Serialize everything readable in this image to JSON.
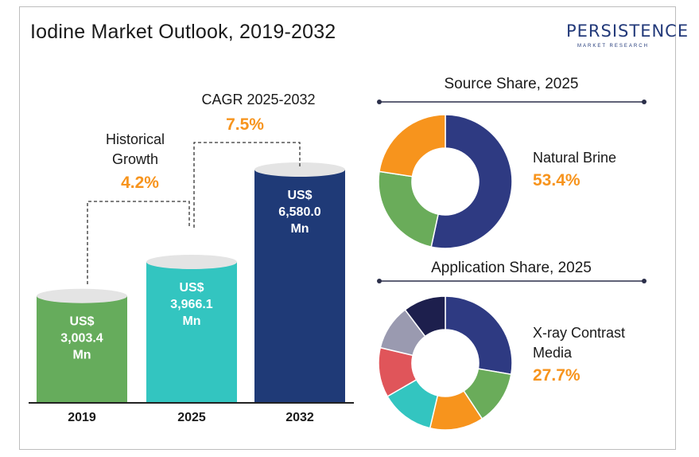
{
  "title": "Iodine Market Outlook, 2019-2032",
  "logo": {
    "name": "PERSISTENCE",
    "tagline": "MARKET RESEARCH"
  },
  "chart_data": [
    {
      "type": "bar",
      "categories": [
        "2019",
        "2025",
        "2032"
      ],
      "values": [
        3003.4,
        3966.1,
        6580.0
      ],
      "value_labels": [
        [
          "US$",
          "3,003.4",
          "Mn"
        ],
        [
          "US$",
          "3,966.1",
          "Mn"
        ],
        [
          "US$",
          "6,580.0",
          "Mn"
        ]
      ],
      "colors": [
        "#66ac5c",
        "#33c5c0",
        "#1f3a77"
      ],
      "annotations": {
        "historical": {
          "label_lines": [
            "Historical",
            "Growth"
          ],
          "value": "4.2%"
        },
        "forecast": {
          "label": "CAGR 2025-2032",
          "value": "7.5%"
        }
      }
    },
    {
      "type": "pie",
      "title": "Source Share, 2025",
      "slices": [
        {
          "value": 53.4,
          "color": "#2e3a82"
        },
        {
          "value": 24.0,
          "color": "#6aac5a"
        },
        {
          "value": 22.6,
          "color": "#f7941d"
        }
      ],
      "highlight": {
        "label": "Natural Brine",
        "value": "53.4%"
      }
    },
    {
      "type": "pie",
      "title": "Application Share, 2025",
      "slices": [
        {
          "value": 27.7,
          "color": "#2e3a82"
        },
        {
          "value": 13.0,
          "color": "#6aac5a"
        },
        {
          "value": 13.0,
          "color": "#f7941d"
        },
        {
          "value": 13.0,
          "color": "#33c5c0"
        },
        {
          "value": 12.0,
          "color": "#e0555a"
        },
        {
          "value": 11.0,
          "color": "#9a9ab0"
        },
        {
          "value": 10.3,
          "color": "#1d1f4d"
        }
      ],
      "highlight": {
        "label_lines": [
          "X-ray Contrast",
          "Media"
        ],
        "value": "27.7%"
      }
    }
  ]
}
